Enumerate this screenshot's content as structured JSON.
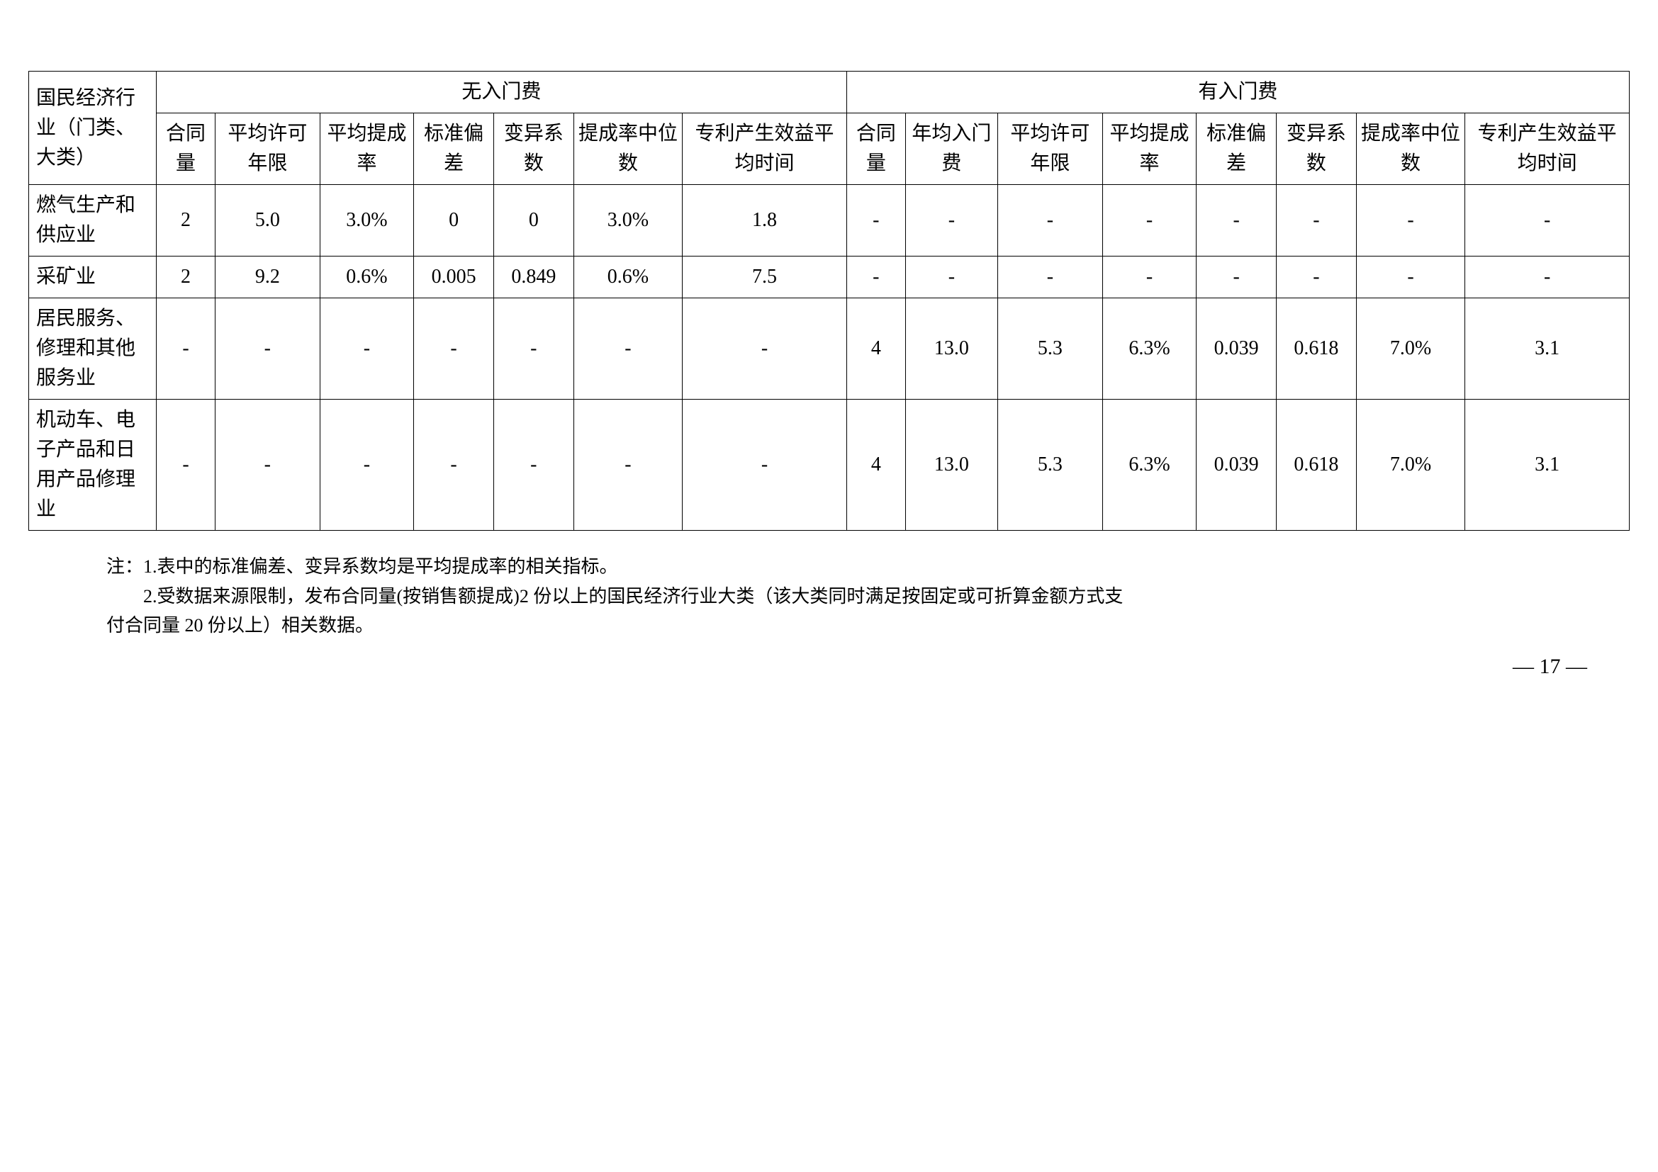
{
  "table": {
    "header_row_label": "国民经济行业（门类、大类）",
    "group_headers": [
      "无入门费",
      "有入门费"
    ],
    "sub_headers_no_fee": [
      "合同量",
      "平均许可年限",
      "平均提成率",
      "标准偏差",
      "变异系数",
      "提成率中位数",
      "专利产生效益平均时间"
    ],
    "sub_headers_fee": [
      "合同量",
      "年均入门费",
      "平均许可年限",
      "平均提成率",
      "标准偏差",
      "变异系数",
      "提成率中位数",
      "专利产生效益平均时间"
    ],
    "rows": [
      {
        "label": "燃气生产和供应业",
        "no_fee": [
          "2",
          "5.0",
          "3.0%",
          "0",
          "0",
          "3.0%",
          "1.8"
        ],
        "fee": [
          "-",
          "-",
          "-",
          "-",
          "-",
          "-",
          "-",
          "-"
        ]
      },
      {
        "label": "采矿业",
        "no_fee": [
          "2",
          "9.2",
          "0.6%",
          "0.005",
          "0.849",
          "0.6%",
          "7.5"
        ],
        "fee": [
          "-",
          "-",
          "-",
          "-",
          "-",
          "-",
          "-",
          "-"
        ]
      },
      {
        "label": "居民服务、修理和其他服务业",
        "no_fee": [
          "-",
          "-",
          "-",
          "-",
          "-",
          "-",
          "-"
        ],
        "fee": [
          "4",
          "13.0",
          "5.3",
          "6.3%",
          "0.039",
          "0.618",
          "7.0%",
          "3.1"
        ]
      },
      {
        "label": "机动车、电子产品和日用产品修理业",
        "no_fee": [
          "-",
          "-",
          "-",
          "-",
          "-",
          "-",
          "-"
        ],
        "fee": [
          "4",
          "13.0",
          "5.3",
          "6.3%",
          "0.039",
          "0.618",
          "7.0%",
          "3.1"
        ]
      }
    ]
  },
  "notes": {
    "prefix": "注：",
    "note1": "1.表中的标准偏差、变异系数均是平均提成率的相关指标。",
    "note2_part1": "2.受数据来源限制，发布合同量(按销售额提成)2 份以上的国民经济行业大类（该大类同时满足按固定或可折算金额方式支",
    "note2_part2": "付合同量 20 份以上）相关数据。"
  },
  "page_number": "— 17 —"
}
